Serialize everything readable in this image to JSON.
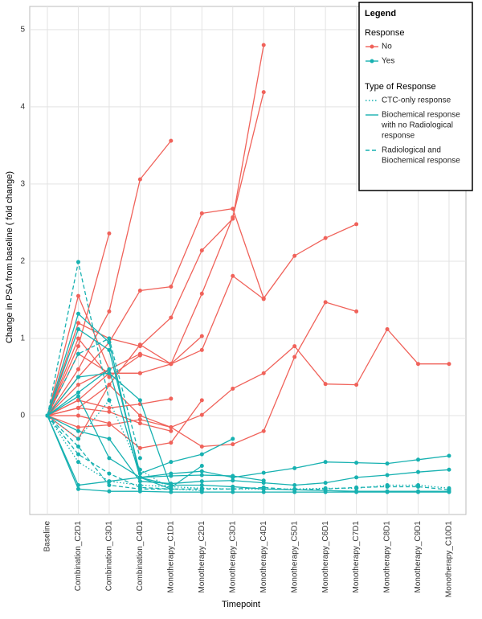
{
  "chart_data": {
    "type": "line",
    "x_label": "Timepoint",
    "y_label": "Change in PSA from baseline ( fold change)",
    "categories": [
      "Baseline",
      "Combination_C2D1",
      "Combination_C3D1",
      "Combination_C4D1",
      "Monotherapy_C1D1",
      "Monotherapy_C2D1",
      "Monotherapy_C3D1",
      "Monotherapy_C4D1",
      "Monotherapy_C5D1",
      "Monotherapy_C6D1",
      "Monotherapy_C7D1",
      "Monotherapy_C8D1",
      "Monotherapy_C9D1",
      "Monotherapy_C10D1"
    ],
    "ylim": [
      -1.28,
      5.3
    ],
    "yticks": [
      0,
      1,
      2,
      3,
      4,
      5
    ],
    "grid": true,
    "legend": {
      "title": "Legend",
      "position": "top-right",
      "groups": [
        {
          "title": "Response",
          "entries": [
            {
              "label": [
                "No"
              ],
              "color": "#f0625a",
              "dash": "solid",
              "marker": true
            },
            {
              "label": [
                "Yes"
              ],
              "color": "#17b1b1",
              "dash": "solid",
              "marker": true
            }
          ]
        },
        {
          "title": "Type of Response",
          "entries": [
            {
              "label": [
                "CTC-only response"
              ],
              "color": "#17b1b1",
              "dash": "dotted",
              "marker": false
            },
            {
              "label": [
                "Biochemical response",
                "with no Radiological",
                "response"
              ],
              "color": "#17b1b1",
              "dash": "solid",
              "marker": false
            },
            {
              "label": [
                "Radiological and",
                "Biochemical response"
              ],
              "color": "#17b1b1",
              "dash": "dashed",
              "marker": false
            }
          ]
        }
      ]
    },
    "series": [
      {
        "color": "#f0625a",
        "dash": "solid",
        "values": [
          0,
          0.9,
          2.36,
          null,
          null,
          null,
          null,
          null,
          null,
          null,
          null,
          null,
          null,
          null
        ]
      },
      {
        "color": "#f0625a",
        "dash": "solid",
        "values": [
          0,
          0.6,
          1.35,
          3.06,
          3.56,
          null,
          null,
          null,
          null,
          null,
          null,
          null,
          null,
          null
        ]
      },
      {
        "color": "#f0625a",
        "dash": "solid",
        "values": [
          0,
          0.5,
          0.95,
          1.62,
          1.67,
          2.62,
          2.68,
          1.52,
          2.07,
          2.3,
          2.48,
          null,
          null,
          null
        ]
      },
      {
        "color": "#f0625a",
        "dash": "solid",
        "values": [
          0,
          1.2,
          1.0,
          0.9,
          1.27,
          2.14,
          2.55,
          4.8,
          null,
          null,
          null,
          null,
          null,
          null
        ]
      },
      {
        "color": "#f0625a",
        "dash": "solid",
        "values": [
          0,
          0.4,
          0.6,
          0.8,
          0.67,
          1.58,
          2.57,
          4.19,
          null,
          null,
          null,
          null,
          null,
          null
        ]
      },
      {
        "color": "#f0625a",
        "dash": "solid",
        "values": [
          0,
          0.2,
          0.55,
          0.55,
          0.67,
          0.85,
          1.81,
          1.51,
          null,
          null,
          null,
          null,
          null,
          null
        ]
      },
      {
        "color": "#f0625a",
        "dash": "solid",
        "values": [
          0,
          0.1,
          0.4,
          0.0,
          -0.15,
          0.01,
          0.35,
          0.55,
          0.9,
          0.41,
          0.4,
          1.12,
          0.67,
          0.67
        ]
      },
      {
        "color": "#f0625a",
        "dash": "solid",
        "values": [
          0,
          0.0,
          -0.1,
          -0.42,
          -0.35,
          0.2,
          null,
          null,
          null,
          null,
          null,
          null,
          null,
          null
        ]
      },
      {
        "color": "#f0625a",
        "dash": "solid",
        "values": [
          0,
          -0.15,
          -0.12,
          -0.05,
          -0.15,
          -0.4,
          -0.37,
          -0.2,
          0.76,
          1.47,
          1.35,
          null,
          null,
          null
        ]
      },
      {
        "color": "#f0625a",
        "dash": "solid",
        "values": [
          0,
          0.8,
          0.55,
          0.55,
          null,
          null,
          null,
          null,
          null,
          null,
          null,
          null,
          null,
          null
        ]
      },
      {
        "color": "#f0625a",
        "dash": "solid",
        "values": [
          0,
          1.55,
          0.6,
          null,
          null,
          null,
          null,
          null,
          null,
          null,
          null,
          null,
          null,
          null
        ]
      },
      {
        "color": "#f0625a",
        "dash": "solid",
        "values": [
          0,
          0.2,
          0.1,
          0.15,
          0.22,
          null,
          null,
          null,
          null,
          null,
          null,
          null,
          null,
          null
        ]
      },
      {
        "color": "#f0625a",
        "dash": "solid",
        "values": [
          0,
          -0.3,
          0.4,
          0.92,
          0.67,
          1.03,
          null,
          null,
          null,
          null,
          null,
          null,
          null,
          null
        ]
      },
      {
        "color": "#f0625a",
        "dash": "solid",
        "values": [
          0,
          1.0,
          0.5,
          0.78,
          null,
          null,
          null,
          null,
          null,
          null,
          null,
          null,
          null,
          null
        ]
      },
      {
        "color": "#f0625a",
        "dash": "solid",
        "values": [
          0,
          0.1,
          0.05,
          -0.1,
          -0.2,
          null,
          null,
          null,
          null,
          null,
          null,
          null,
          null,
          null
        ]
      },
      {
        "color": "#17b1b1",
        "dash": "dashed",
        "values": [
          0,
          1.99,
          0.2,
          null,
          null,
          null,
          null,
          null,
          null,
          null,
          null,
          null,
          null,
          null
        ]
      },
      {
        "color": "#17b1b1",
        "dash": "solid",
        "values": [
          0,
          1.32,
          0.95,
          -0.8,
          -0.95,
          null,
          null,
          null,
          null,
          null,
          null,
          null,
          null,
          null
        ]
      },
      {
        "color": "#17b1b1",
        "dash": "solid",
        "values": [
          0,
          1.12,
          0.85,
          -0.75,
          -0.6,
          -0.5,
          -0.3,
          null,
          null,
          null,
          null,
          null,
          null,
          null
        ]
      },
      {
        "color": "#17b1b1",
        "dash": "solid",
        "values": [
          0,
          0.3,
          0.6,
          -0.8,
          -0.75,
          -0.72,
          -0.8,
          -0.74,
          -0.68,
          -0.6,
          -0.61,
          -0.62,
          -0.57,
          -0.52
        ]
      },
      {
        "color": "#17b1b1",
        "dash": "solid",
        "values": [
          0,
          -0.2,
          -0.3,
          -0.85,
          -0.88,
          -0.85,
          -0.84,
          -0.87,
          -0.9,
          -0.87,
          -0.8,
          -0.77,
          -0.73,
          -0.7
        ]
      },
      {
        "color": "#17b1b1",
        "dash": "dashed",
        "values": [
          0,
          -0.5,
          -0.75,
          -0.93,
          -0.95,
          -0.95,
          -0.95,
          -0.93,
          -0.96,
          -0.95,
          -0.93,
          -0.92,
          -0.92,
          -0.96
        ]
      },
      {
        "color": "#17b1b1",
        "dash": "dotted",
        "values": [
          0,
          -0.6,
          -0.85,
          -0.9,
          -0.92,
          -0.94,
          -0.95,
          -0.95,
          -0.95,
          -0.94,
          -0.94,
          -0.9,
          -0.9,
          -0.94
        ]
      },
      {
        "color": "#17b1b1",
        "dash": "solid",
        "values": [
          0,
          -0.95,
          -0.98,
          -0.98,
          -0.99,
          -0.99,
          -0.99,
          -0.99,
          -0.99,
          -0.99,
          -0.99,
          -0.99,
          -0.99,
          -0.99
        ]
      },
      {
        "color": "#17b1b1",
        "dash": "solid",
        "values": [
          0,
          -0.9,
          -0.85,
          -0.8,
          -0.78,
          -0.77,
          -0.78,
          -0.84,
          null,
          null,
          null,
          null,
          null,
          null
        ]
      },
      {
        "color": "#17b1b1",
        "dash": "dashed",
        "values": [
          0,
          0.8,
          1.0,
          -0.55,
          null,
          null,
          null,
          null,
          null,
          null,
          null,
          null,
          null,
          null
        ]
      },
      {
        "color": "#17b1b1",
        "dash": "solid",
        "values": [
          0,
          0.25,
          -0.55,
          -0.8,
          -0.9,
          -0.9,
          -0.92,
          -0.95,
          -0.96,
          -0.97,
          -0.98,
          -0.98,
          -0.98,
          -0.98
        ]
      },
      {
        "color": "#17b1b1",
        "dash": "dotted",
        "values": [
          0,
          -0.3,
          0.2,
          -0.7,
          -0.95,
          -0.97,
          null,
          null,
          null,
          null,
          null,
          null,
          null,
          null
        ]
      },
      {
        "color": "#17b1b1",
        "dash": "solid",
        "values": [
          0,
          0.5,
          0.55,
          0.2,
          -0.93,
          -0.65,
          null,
          null,
          null,
          null,
          null,
          null,
          null,
          null
        ]
      },
      {
        "color": "#17b1b1",
        "dash": "dashed",
        "values": [
          0,
          -0.4,
          -0.9,
          -0.95,
          -0.95,
          null,
          null,
          null,
          null,
          null,
          null,
          null,
          null,
          null
        ]
      }
    ]
  }
}
